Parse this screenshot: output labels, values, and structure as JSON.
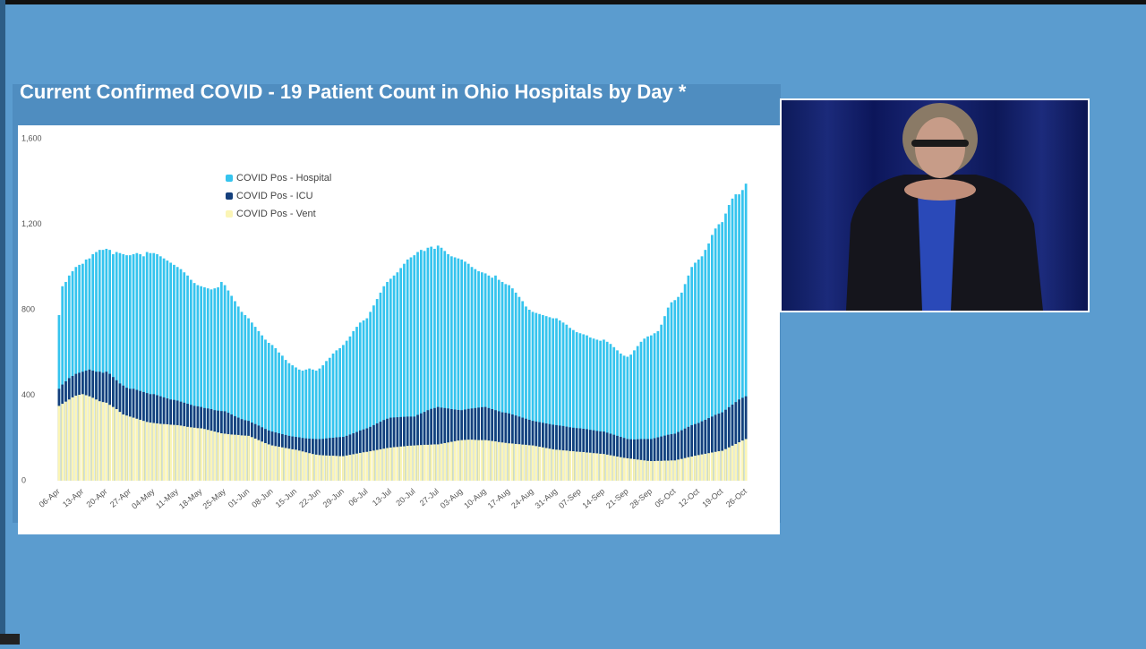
{
  "chart_data": {
    "type": "bar",
    "title": "Current Confirmed COVID - 19 Patient Count in Ohio Hospitals by Day *",
    "categories": [
      "06-Apr",
      null,
      null,
      null,
      null,
      null,
      null,
      "13-Apr",
      null,
      null,
      null,
      null,
      null,
      null,
      "20-Apr",
      null,
      null,
      null,
      null,
      null,
      null,
      "27-Apr",
      null,
      null,
      null,
      null,
      null,
      null,
      "04-May",
      null,
      null,
      null,
      null,
      null,
      null,
      "11-May",
      null,
      null,
      null,
      null,
      null,
      null,
      "18-May",
      null,
      null,
      null,
      null,
      null,
      null,
      "25-May",
      null,
      null,
      null,
      null,
      null,
      null,
      "01-Jun",
      null,
      null,
      null,
      null,
      null,
      null,
      "08-Jun",
      null,
      null,
      null,
      null,
      null,
      null,
      "15-Jun",
      null,
      null,
      null,
      null,
      null,
      null,
      "22-Jun",
      null,
      null,
      null,
      null,
      null,
      null,
      "29-Jun",
      null,
      null,
      null,
      null,
      null,
      null,
      "06-Jul",
      null,
      null,
      null,
      null,
      null,
      null,
      "13-Jul",
      null,
      null,
      null,
      null,
      null,
      null,
      "20-Jul",
      null,
      null,
      null,
      null,
      null,
      null,
      "27-Jul",
      null,
      null,
      null,
      null,
      null,
      null,
      "03-Aug",
      null,
      null,
      null,
      null,
      null,
      null,
      "10-Aug",
      null,
      null,
      null,
      null,
      null,
      null,
      "17-Aug",
      null,
      null,
      null,
      null,
      null,
      null,
      "24-Aug",
      null,
      null,
      null,
      null,
      null,
      null,
      "31-Aug",
      null,
      null,
      null,
      null,
      null,
      null,
      "07-Sep",
      null,
      null,
      null,
      null,
      null,
      null,
      "14-Sep",
      null,
      null,
      null,
      null,
      null,
      null,
      "21-Sep",
      null,
      null,
      null,
      null,
      null,
      null,
      "28-Sep",
      null,
      null,
      null,
      null,
      null,
      null,
      "05-Oct",
      null,
      null,
      null,
      null,
      null,
      null,
      "12-Oct",
      null,
      null,
      null,
      null,
      null,
      null,
      "19-Oct",
      null,
      null,
      null,
      null,
      null,
      null,
      "26-Oct"
    ],
    "series": [
      {
        "name": "COVID Pos - Hospital",
        "color": "#35c4ee",
        "values": [
          775,
          910,
          930,
          960,
          980,
          1000,
          1010,
          1015,
          1035,
          1040,
          1060,
          1070,
          1080,
          1080,
          1085,
          1080,
          1060,
          1070,
          1065,
          1060,
          1055,
          1055,
          1060,
          1065,
          1060,
          1050,
          1070,
          1065,
          1065,
          1060,
          1050,
          1040,
          1030,
          1020,
          1010,
          1000,
          990,
          975,
          960,
          940,
          925,
          915,
          910,
          905,
          900,
          895,
          900,
          905,
          930,
          915,
          890,
          865,
          840,
          815,
          790,
          775,
          760,
          740,
          720,
          700,
          680,
          660,
          645,
          635,
          620,
          600,
          585,
          565,
          550,
          540,
          530,
          520,
          515,
          520,
          525,
          520,
          515,
          525,
          540,
          560,
          575,
          595,
          610,
          620,
          635,
          655,
          675,
          700,
          720,
          740,
          750,
          760,
          790,
          820,
          850,
          880,
          910,
          930,
          945,
          960,
          975,
          995,
          1015,
          1035,
          1045,
          1055,
          1070,
          1080,
          1075,
          1090,
          1095,
          1085,
          1100,
          1090,
          1075,
          1060,
          1050,
          1045,
          1040,
          1035,
          1025,
          1015,
          1000,
          990,
          980,
          975,
          970,
          960,
          950,
          960,
          940,
          930,
          920,
          915,
          900,
          880,
          860,
          840,
          815,
          800,
          790,
          785,
          780,
          775,
          770,
          765,
          760,
          760,
          750,
          740,
          730,
          715,
          705,
          695,
          690,
          685,
          680,
          670,
          665,
          660,
          655,
          660,
          650,
          640,
          625,
          610,
          595,
          585,
          580,
          590,
          610,
          630,
          650,
          665,
          675,
          680,
          690,
          700,
          730,
          770,
          810,
          835,
          845,
          860,
          880,
          920,
          960,
          1000,
          1020,
          1035,
          1050,
          1080,
          1110,
          1150,
          1180,
          1200,
          1210,
          1250,
          1290,
          1320,
          1340,
          1340,
          1360,
          1390
        ]
      },
      {
        "name": "COVID Pos - ICU",
        "color": "#143f7c",
        "values": [
          430,
          450,
          465,
          480,
          490,
          500,
          505,
          510,
          515,
          520,
          515,
          510,
          510,
          505,
          510,
          500,
          485,
          470,
          455,
          445,
          435,
          430,
          430,
          425,
          420,
          415,
          410,
          405,
          405,
          400,
          395,
          390,
          385,
          380,
          378,
          375,
          370,
          365,
          360,
          355,
          350,
          348,
          345,
          340,
          338,
          335,
          330,
          328,
          326,
          325,
          318,
          310,
          302,
          295,
          288,
          283,
          280,
          272,
          265,
          258,
          250,
          242,
          235,
          230,
          226,
          222,
          218,
          214,
          210,
          207,
          205,
          203,
          200,
          198,
          197,
          196,
          195,
          195,
          196,
          198,
          200,
          201,
          203,
          204,
          205,
          210,
          216,
          222,
          228,
          235,
          240,
          245,
          252,
          260,
          268,
          276,
          284,
          290,
          295,
          296,
          297,
          298,
          299,
          300,
          300,
          300,
          308,
          315,
          322,
          330,
          336,
          340,
          345,
          342,
          340,
          338,
          335,
          333,
          331,
          330,
          333,
          336,
          338,
          340,
          342,
          344,
          345,
          340,
          335,
          330,
          325,
          320,
          318,
          315,
          310,
          305,
          300,
          295,
          290,
          285,
          280,
          277,
          274,
          271,
          268,
          265,
          262,
          260,
          258,
          256,
          253,
          250,
          248,
          246,
          245,
          243,
          241,
          238,
          236,
          233,
          231,
          230,
          225,
          220,
          215,
          210,
          205,
          200,
          195,
          194,
          193,
          194,
          195,
          195,
          195,
          195,
          199,
          203,
          207,
          211,
          215,
          218,
          220,
          228,
          236,
          244,
          252,
          260,
          265,
          270,
          278,
          285,
          293,
          300,
          308,
          314,
          320,
          332,
          344,
          356,
          368,
          380,
          388,
          395
        ]
      },
      {
        "name": "COVID Pos - Vent",
        "color": "#fbf5b6",
        "values": [
          350,
          360,
          370,
          380,
          390,
          398,
          402,
          405,
          400,
          395,
          388,
          380,
          372,
          368,
          365,
          355,
          345,
          335,
          322,
          310,
          305,
          300,
          295,
          290,
          285,
          280,
          275,
          272,
          270,
          268,
          266,
          265,
          264,
          262,
          261,
          260,
          258,
          255,
          252,
          250,
          248,
          246,
          245,
          242,
          238,
          234,
          230,
          226,
          222,
          220,
          218,
          216,
          215,
          214,
          212,
          211,
          210,
          204,
          197,
          190,
          183,
          176,
          170,
          165,
          162,
          159,
          156,
          153,
          150,
          147,
          145,
          141,
          137,
          133,
          129,
          125,
          122,
          120,
          119,
          118,
          117,
          117,
          116,
          115,
          115,
          118,
          121,
          124,
          127,
          130,
          133,
          135,
          138,
          141,
          144,
          147,
          150,
          153,
          155,
          157,
          158,
          160,
          161,
          163,
          164,
          165,
          166,
          167,
          168,
          168,
          169,
          170,
          170,
          173,
          176,
          179,
          182,
          185,
          188,
          190,
          191,
          192,
          192,
          191,
          190,
          190,
          190,
          188,
          186,
          184,
          181,
          179,
          177,
          175,
          174,
          172,
          171,
          169,
          168,
          166,
          165,
          162,
          159,
          156,
          153,
          150,
          147,
          145,
          144,
          142,
          141,
          139,
          138,
          136,
          135,
          134,
          132,
          131,
          129,
          128,
          126,
          125,
          122,
          119,
          116,
          113,
          110,
          107,
          105,
          103,
          101,
          99,
          97,
          95,
          93,
          92,
          92,
          93,
          93,
          94,
          94,
          95,
          95,
          99,
          102,
          106,
          110,
          113,
          117,
          120,
          123,
          126,
          129,
          132,
          135,
          138,
          140,
          148,
          156,
          164,
          172,
          180,
          188,
          195
        ]
      }
    ],
    "ylim": [
      0,
      1600
    ],
    "yticks": [
      0,
      400,
      800,
      {
        "value": 1200,
        "label": "1,200"
      },
      {
        "value": 1600,
        "label": "1,600"
      }
    ],
    "grid": false
  }
}
